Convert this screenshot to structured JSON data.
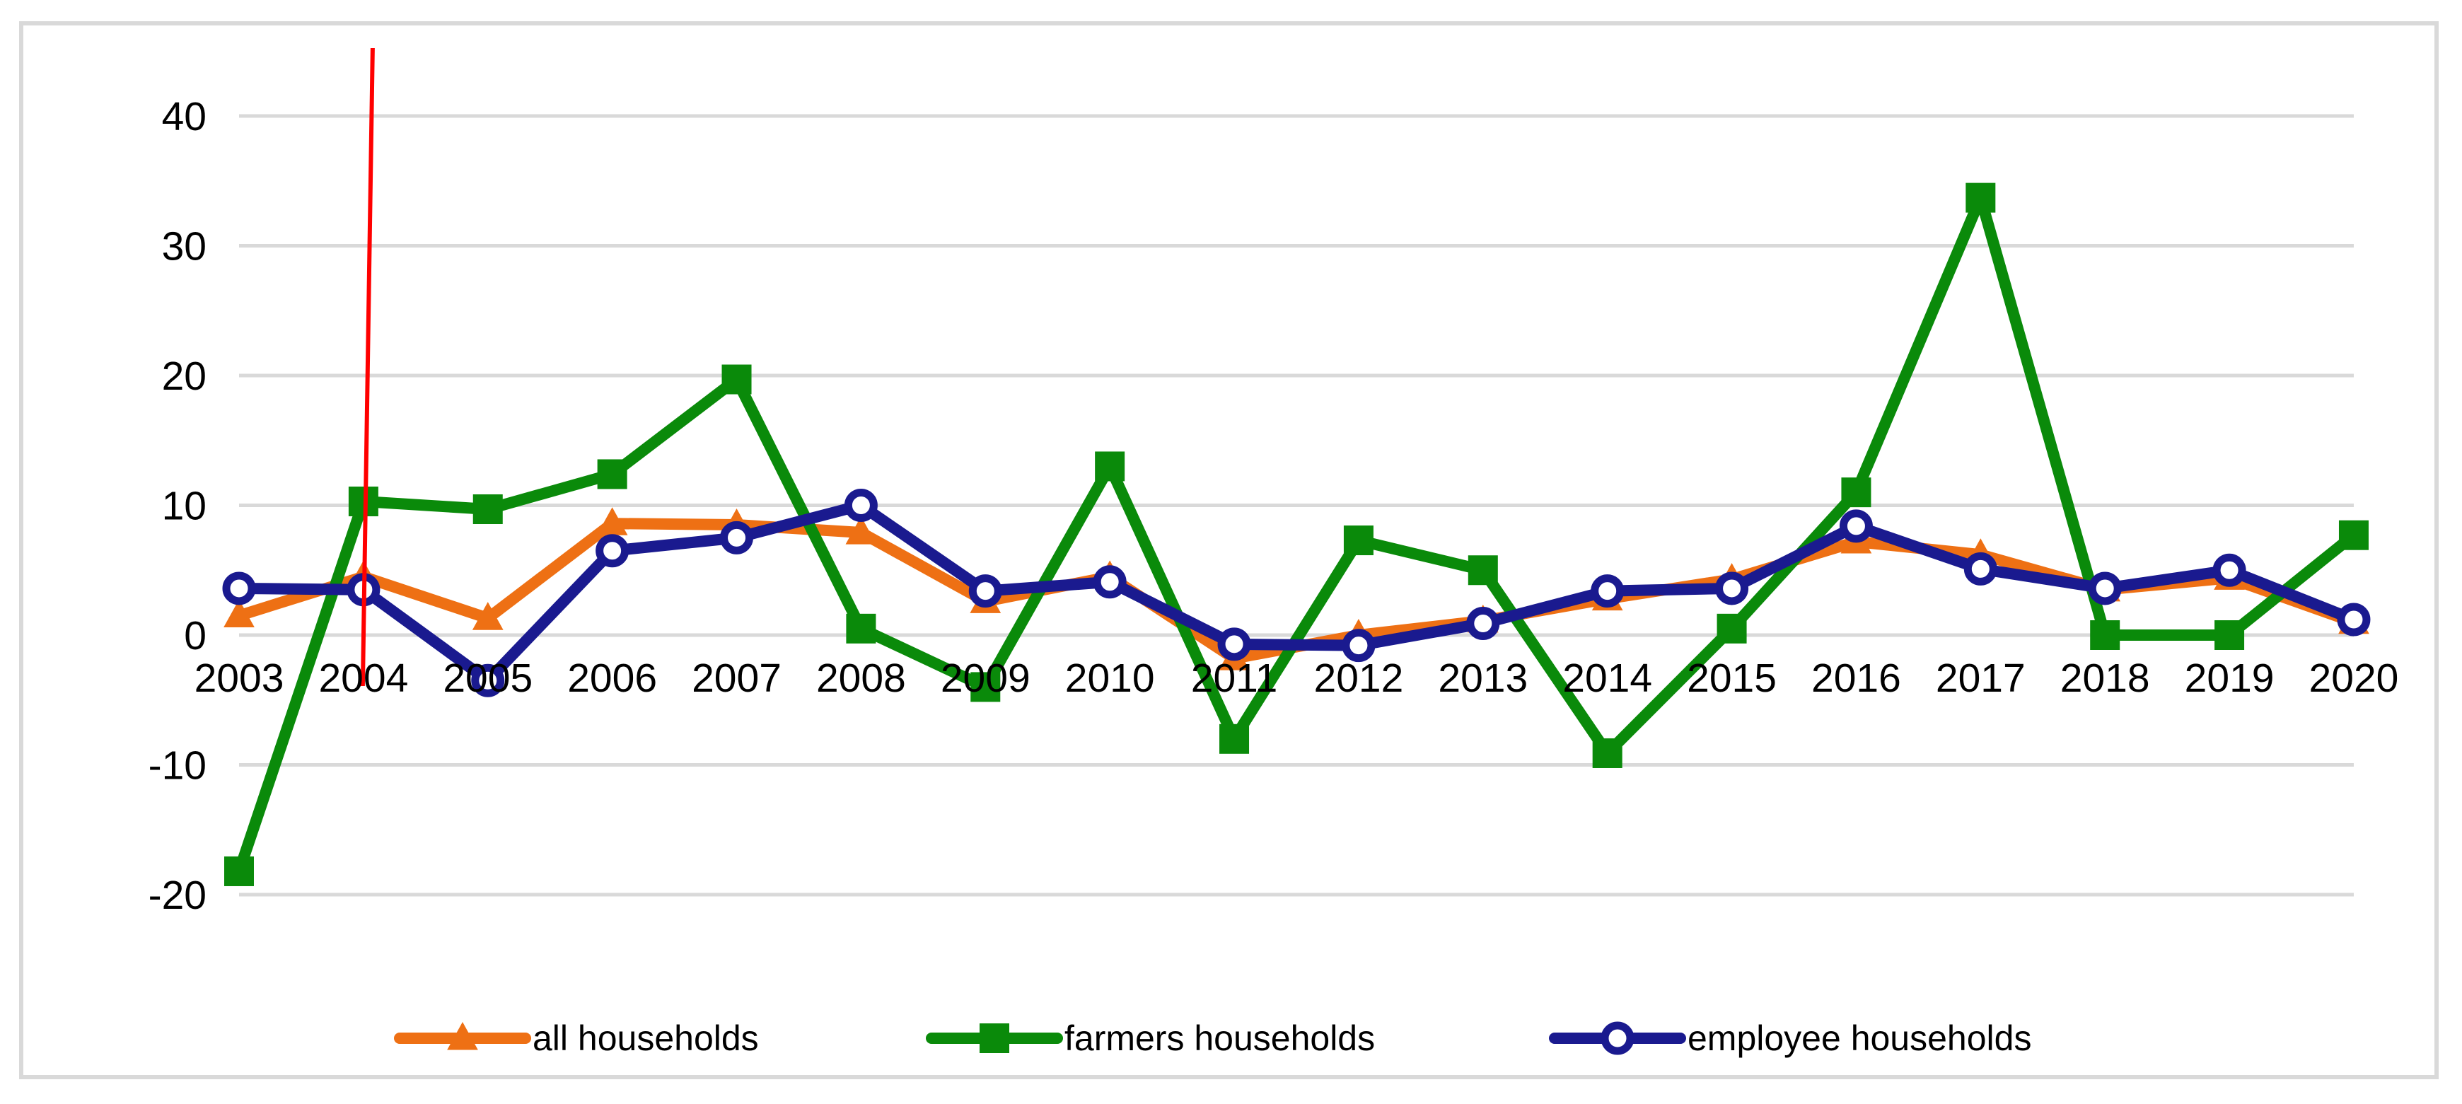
{
  "figure": {
    "background": "#ffffff",
    "frame_color": "#d9d9d9",
    "gridline_color": "#d9d9d9",
    "text_color": "#000000"
  },
  "chart_data": {
    "type": "line",
    "title": "",
    "xlabel": "",
    "ylabel": "",
    "x": [
      2003,
      2004,
      2005,
      2006,
      2007,
      2008,
      2009,
      2010,
      2011,
      2012,
      2013,
      2014,
      2015,
      2016,
      2017,
      2018,
      2019,
      2020
    ],
    "xticklabels": [
      "2003",
      "2004",
      "2005",
      "2006",
      "2007",
      "2008",
      "2009",
      "2010",
      "2011",
      "2012",
      "2013",
      "2014",
      "2015",
      "2016",
      "2017",
      "2018",
      "2019",
      "2020"
    ],
    "yticks": [
      -20,
      -10,
      0,
      10,
      20,
      30,
      40
    ],
    "yticklabels": [
      "-20",
      "-10",
      "0",
      "10",
      "20",
      "30",
      "40"
    ],
    "ylim": [
      -25,
      45
    ],
    "grid": "horizontal",
    "legend_position": "bottom",
    "series": [
      {
        "name": "all households",
        "color": "#EE7014",
        "marker": "triangle",
        "values": [
          1.5,
          4.5,
          1.3,
          8.6,
          8.5,
          7.9,
          2.6,
          4.5,
          -1.8,
          0.0,
          1.1,
          2.8,
          4.3,
          7.2,
          6.2,
          3.5,
          4.4,
          1.0
        ]
      },
      {
        "name": "farmers households",
        "color": "#0A8A0A",
        "marker": "square",
        "values": [
          -18.2,
          10.3,
          9.7,
          12.4,
          19.7,
          0.5,
          -4.0,
          13.0,
          -8.0,
          7.3,
          5.0,
          -9.1,
          0.5,
          11.0,
          33.7,
          0.0,
          0.0,
          7.7
        ]
      },
      {
        "name": "employee households",
        "color": "#1A1A8F",
        "marker": "circle-open",
        "values": [
          3.6,
          3.5,
          -3.5,
          6.5,
          7.5,
          10.0,
          3.4,
          4.1,
          -0.7,
          -0.8,
          0.9,
          3.4,
          3.6,
          8.4,
          5.1,
          3.6,
          5.0,
          1.2
        ]
      }
    ],
    "annotations": [
      {
        "type": "vertical-line",
        "x": 2004,
        "color": "#FF0000",
        "note": "red reference line at year 2004"
      }
    ]
  },
  "legend": {
    "items": [
      {
        "label": "all households"
      },
      {
        "label": "farmers households"
      },
      {
        "label": "employee households"
      }
    ]
  }
}
